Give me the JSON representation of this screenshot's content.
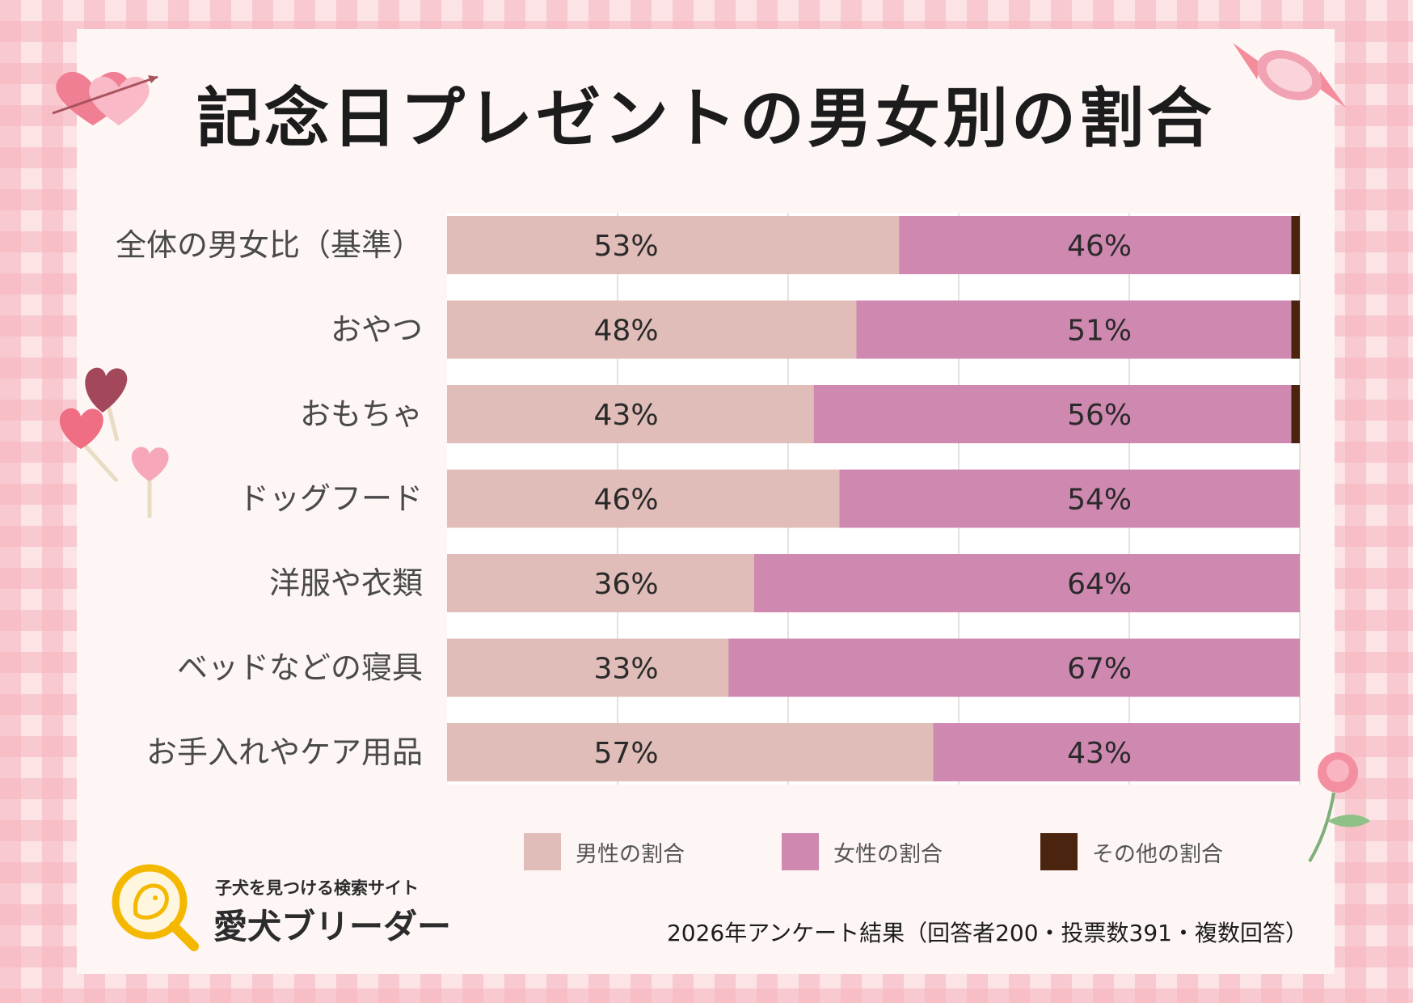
{
  "title": "記念日プレゼントの男女別の割合",
  "chart_data": {
    "type": "bar",
    "orientation": "horizontal",
    "stacked": true,
    "title": "記念日プレゼントの男女別の割合",
    "categories": [
      "全体の男女比（基準）",
      "おやつ",
      "おもちゃ",
      "ドッグフード",
      "洋服や衣類",
      "ベッドなどの寝具",
      "お手入れやケア用品"
    ],
    "series": [
      {
        "name": "男性の割合",
        "color": "#e0bdb8",
        "values": [
          53,
          48,
          43,
          46,
          36,
          33,
          57
        ],
        "labels": [
          "53%",
          "48%",
          "43%",
          "46%",
          "36%",
          "33%",
          "57%"
        ]
      },
      {
        "name": "女性の割合",
        "color": "#cf88b0",
        "values": [
          46,
          51,
          56,
          54,
          64,
          67,
          43
        ],
        "labels": [
          "46%",
          "51%",
          "56%",
          "54%",
          "64%",
          "67%",
          "43%"
        ]
      },
      {
        "name": "その他の割合",
        "color": "#4b2410",
        "values": [
          1,
          1,
          1,
          0,
          0,
          0,
          0
        ]
      }
    ],
    "xlim": [
      0,
      100
    ],
    "grid": true,
    "legend": "bottom"
  },
  "legend": [
    {
      "label": "男性の割合",
      "color": "#e0bdb8"
    },
    {
      "label": "女性の割合",
      "color": "#cf88b0"
    },
    {
      "label": "その他の割合",
      "color": "#4b2410"
    }
  ],
  "brand": {
    "tagline": "子犬を見つける検索サイト",
    "name": "愛犬ブリーダー"
  },
  "footnote": "2026年アンケート結果（回答者200・投票数391・複数回答）",
  "icons": [
    "hearts-arrow-icon",
    "candy-icon",
    "heart-lollipop-icon",
    "rose-icon",
    "dog-search-logo-icon"
  ]
}
